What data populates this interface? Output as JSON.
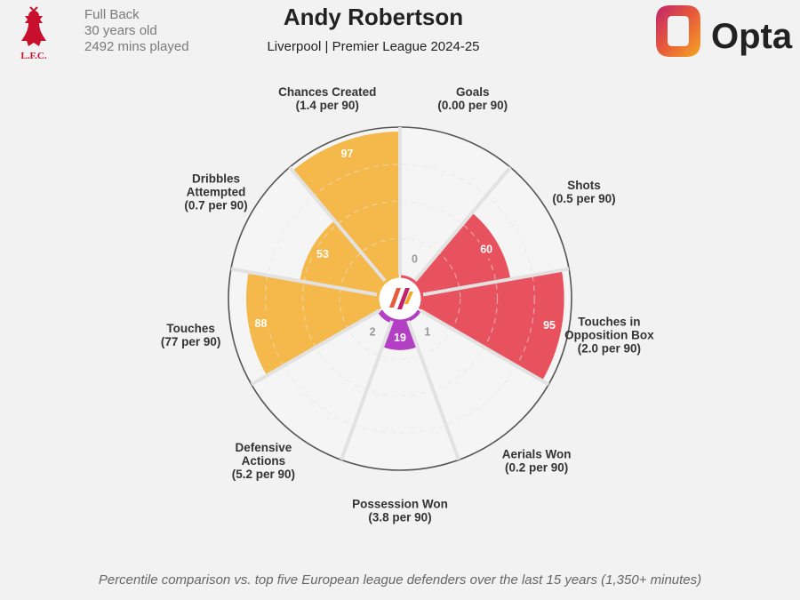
{
  "header": {
    "player_name": "Andy Robertson",
    "subtitle": "Liverpool | Premier League 2024-25",
    "position": "Full Back",
    "age": "30 years old",
    "minutes": "2492 mins played",
    "club_logo_text": "L.F.C.",
    "opta_brand": "Opta"
  },
  "footnote": "Percentile comparison vs. top five European league defenders over the last 15 years (1,350+ minutes)",
  "colors": {
    "attacking": "#f5b84a",
    "shooting": "#e8525f",
    "defending": "#b23fc4",
    "liverpool_red": "#c8102e"
  },
  "chart_data": {
    "type": "polar-bar",
    "unit": "percentile",
    "rlim": [
      0,
      100
    ],
    "categories": [
      {
        "name": "Goals",
        "rate": "(0.00 per 90)",
        "value": 0,
        "group": "shooting"
      },
      {
        "name": "Shots",
        "rate": "(0.5 per 90)",
        "value": 60,
        "group": "shooting"
      },
      {
        "name": "Touches in Opposition Box",
        "rate": "(2.0 per 90)",
        "value": 95,
        "group": "shooting"
      },
      {
        "name": "Aerials Won",
        "rate": "(0.2 per 90)",
        "value": 1,
        "group": "defending"
      },
      {
        "name": "Possession Won",
        "rate": "(3.8 per 90)",
        "value": 19,
        "group": "defending"
      },
      {
        "name": "Defensive Actions",
        "rate": "(5.2 per 90)",
        "value": 2,
        "group": "defending"
      },
      {
        "name": "Touches",
        "rate": "(77 per 90)",
        "value": 88,
        "group": "attacking"
      },
      {
        "name": "Dribbles Attempted",
        "rate": "(0.7 per 90)",
        "value": 53,
        "group": "attacking"
      },
      {
        "name": "Chances Created",
        "rate": "(1.4 per 90)",
        "value": 97,
        "group": "attacking"
      }
    ]
  }
}
